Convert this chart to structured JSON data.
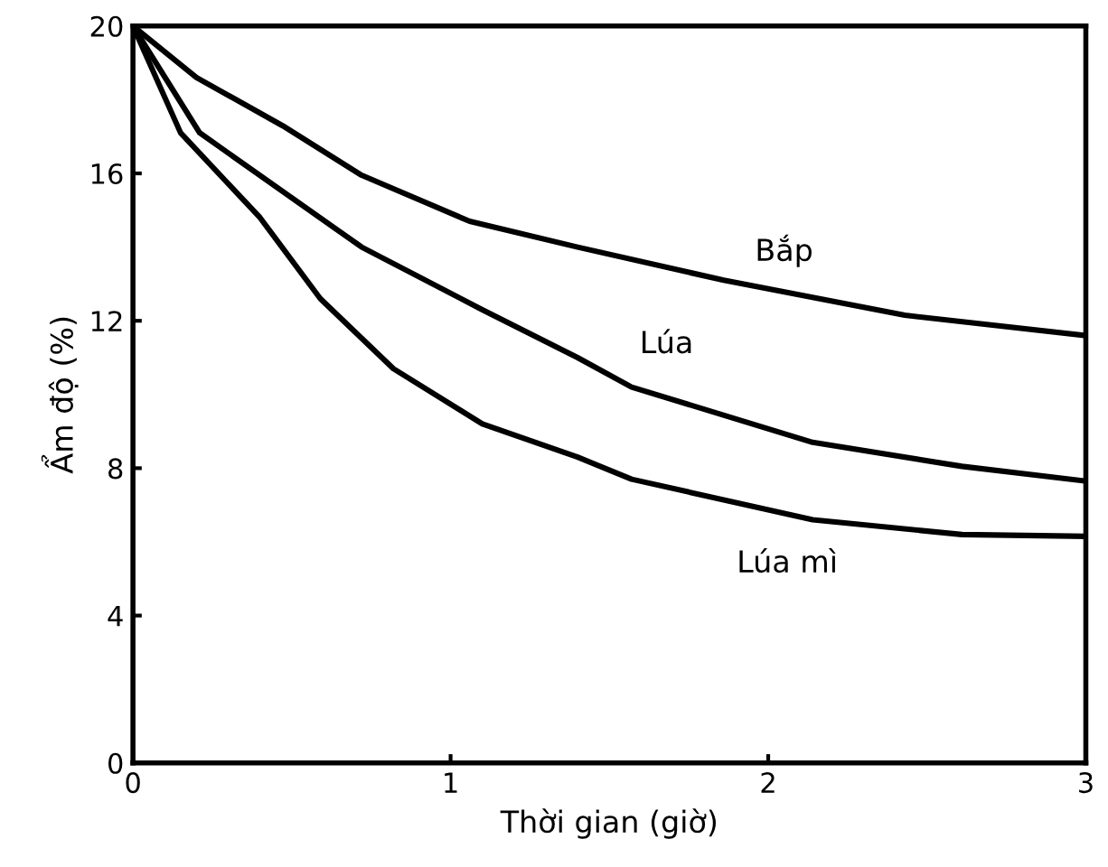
{
  "chart_data": {
    "type": "line",
    "xlabel": "Thời gian (giờ)",
    "ylabel": "Ẩm độ (%)",
    "xlim": [
      0,
      3
    ],
    "ylim": [
      0,
      20
    ],
    "xticks": [
      0,
      1,
      2,
      3
    ],
    "yticks": [
      0,
      4,
      8,
      12,
      16,
      20
    ],
    "grid": false,
    "legend": false,
    "marker": "none",
    "line_style": "solid",
    "series": [
      {
        "name": "Bắp",
        "color": "#000000",
        "x": [
          0,
          0.2,
          0.47,
          0.72,
          1.06,
          1.4,
          1.86,
          2.43,
          3
        ],
        "values": [
          20,
          18.6,
          17.3,
          15.95,
          14.7,
          14.0,
          13.1,
          12.15,
          11.6
        ]
      },
      {
        "name": "Lúa",
        "color": "#000000",
        "x": [
          0,
          0.21,
          0.72,
          1.1,
          1.4,
          1.57,
          2.14,
          2.61,
          3
        ],
        "values": [
          20,
          17.1,
          14.0,
          12.3,
          11.0,
          10.2,
          8.7,
          8.05,
          7.65
        ]
      },
      {
        "name": "Lúa mì",
        "color": "#000000",
        "x": [
          0,
          0.15,
          0.4,
          0.59,
          0.82,
          1.1,
          1.4,
          1.57,
          2.14,
          2.61,
          3
        ],
        "values": [
          20,
          17.1,
          14.8,
          12.6,
          10.7,
          9.2,
          8.3,
          7.7,
          6.6,
          6.2,
          6.15
        ]
      }
    ]
  }
}
